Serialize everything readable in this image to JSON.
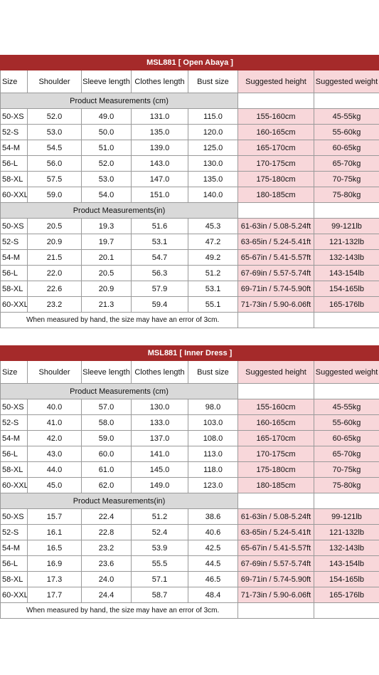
{
  "tables": [
    {
      "title": "MSL881 [ Open Abaya ]",
      "headers": [
        "Size",
        "Shoulder",
        "Sleeve length",
        "Clothes length",
        "Bust size",
        "Suggested height",
        "Suggested weight"
      ],
      "section_cm": "Product Measurements  (cm)",
      "rows_cm": [
        [
          "50-XS",
          "52.0",
          "49.0",
          "131.0",
          "115.0",
          "155-160cm",
          "45-55kg"
        ],
        [
          "52-S",
          "53.0",
          "50.0",
          "135.0",
          "120.0",
          "160-165cm",
          "55-60kg"
        ],
        [
          "54-M",
          "54.5",
          "51.0",
          "139.0",
          "125.0",
          "165-170cm",
          "60-65kg"
        ],
        [
          "56-L",
          "56.0",
          "52.0",
          "143.0",
          "130.0",
          "170-175cm",
          "65-70kg"
        ],
        [
          "58-XL",
          "57.5",
          "53.0",
          "147.0",
          "135.0",
          "175-180cm",
          "70-75kg"
        ],
        [
          "60-XXL",
          "59.0",
          "54.0",
          "151.0",
          "140.0",
          "180-185cm",
          "75-80kg"
        ]
      ],
      "section_in": "Product Measurements(in)",
      "rows_in": [
        [
          "50-XS",
          "20.5",
          "19.3",
          "51.6",
          "45.3",
          "61-63in / 5.08-5.24ft",
          "99-121lb"
        ],
        [
          "52-S",
          "20.9",
          "19.7",
          "53.1",
          "47.2",
          "63-65in / 5.24-5.41ft",
          "121-132lb"
        ],
        [
          "54-M",
          "21.5",
          "20.1",
          "54.7",
          "49.2",
          "65-67in / 5.41-5.57ft",
          "132-143lb"
        ],
        [
          "56-L",
          "22.0",
          "20.5",
          "56.3",
          "51.2",
          "67-69in / 5.57-5.74ft",
          "143-154lb"
        ],
        [
          "58-XL",
          "22.6",
          "20.9",
          "57.9",
          "53.1",
          "69-71in / 5.74-5.90ft",
          "154-165lb"
        ],
        [
          "60-XXL",
          "23.2",
          "21.3",
          "59.4",
          "55.1",
          "71-73in / 5.90-6.06ft",
          "165-176lb"
        ]
      ],
      "note": "When measured by hand, the size may have an error of 3cm."
    },
    {
      "title": "MSL881 [ Inner Dress ]",
      "headers": [
        "Size",
        "Shoulder",
        "Sleeve length",
        "Clothes length",
        "Bust size",
        "Suggested height",
        "Suggested weight"
      ],
      "section_cm": "Product Measurements  (cm)",
      "rows_cm": [
        [
          "50-XS",
          "40.0",
          "57.0",
          "130.0",
          "98.0",
          "155-160cm",
          "45-55kg"
        ],
        [
          "52-S",
          "41.0",
          "58.0",
          "133.0",
          "103.0",
          "160-165cm",
          "55-60kg"
        ],
        [
          "54-M",
          "42.0",
          "59.0",
          "137.0",
          "108.0",
          "165-170cm",
          "60-65kg"
        ],
        [
          "56-L",
          "43.0",
          "60.0",
          "141.0",
          "113.0",
          "170-175cm",
          "65-70kg"
        ],
        [
          "58-XL",
          "44.0",
          "61.0",
          "145.0",
          "118.0",
          "175-180cm",
          "70-75kg"
        ],
        [
          "60-XXL",
          "45.0",
          "62.0",
          "149.0",
          "123.0",
          "180-185cm",
          "75-80kg"
        ]
      ],
      "section_in": "Product Measurements(in)",
      "rows_in": [
        [
          "50-XS",
          "15.7",
          "22.4",
          "51.2",
          "38.6",
          "61-63in / 5.08-5.24ft",
          "99-121lb"
        ],
        [
          "52-S",
          "16.1",
          "22.8",
          "52.4",
          "40.6",
          "63-65in / 5.24-5.41ft",
          "121-132lb"
        ],
        [
          "54-M",
          "16.5",
          "23.2",
          "53.9",
          "42.5",
          "65-67in / 5.41-5.57ft",
          "132-143lb"
        ],
        [
          "56-L",
          "16.9",
          "23.6",
          "55.5",
          "44.5",
          "67-69in / 5.57-5.74ft",
          "143-154lb"
        ],
        [
          "58-XL",
          "17.3",
          "24.0",
          "57.1",
          "46.5",
          "69-71in / 5.74-5.90ft",
          "154-165lb"
        ],
        [
          "60-XXL",
          "17.7",
          "24.4",
          "58.7",
          "48.4",
          "71-73in / 5.90-6.06ft",
          "165-176lb"
        ]
      ],
      "note": "When measured by hand, the size may have an error of 3cm."
    }
  ],
  "colors": {
    "title_bg": "#a52a2a",
    "pink": "#f8d7da",
    "section_gray": "#d9d9d9"
  }
}
